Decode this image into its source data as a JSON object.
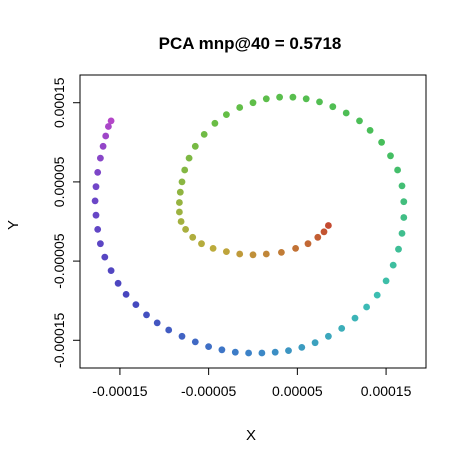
{
  "chart_data": {
    "type": "scatter",
    "title": "PCA mnp@40 = 0.5718",
    "xlabel": "X",
    "ylabel": "Y",
    "xlim": [
      -0.000195,
      0.000195
    ],
    "ylim": [
      -0.000185,
      0.000185
    ],
    "x_ticks": [
      -0.00015,
      -5e-05,
      5e-05,
      0.00015
    ],
    "x_tick_labels": [
      "-0.00015",
      "-0.00005",
      "0.00005",
      "0.00015"
    ],
    "y_ticks": [
      -0.00015,
      -5e-05,
      5e-05,
      0.00015
    ],
    "y_tick_labels": [
      "-0.00015",
      "-0.00005",
      "0.00005",
      "0.00015"
    ],
    "grid": false,
    "legend": "none",
    "color_scale": "rainbow gradient along the spiral from red (inner end) through yellow, green, cyan and blue to purple (outer end)",
    "series": [
      {
        "points": [
          [
            8.5e-05,
            -5e-06
          ],
          [
            8e-05,
            -1.3e-05
          ],
          [
            7.3e-05,
            -2e-05
          ],
          [
            6.2e-05,
            -2.8e-05
          ],
          [
            4.8e-05,
            -3.4e-05
          ],
          [
            3.2e-05,
            -3.9e-05
          ],
          [
            1.5e-05,
            -4.1e-05
          ],
          [
            0.0,
            -4.2e-05
          ],
          [
            -1.5e-05,
            -4.1e-05
          ],
          [
            -3e-05,
            -3.8e-05
          ],
          [
            -4.5e-05,
            -3.4e-05
          ],
          [
            -5.8e-05,
            -2.8e-05
          ],
          [
            -6.8e-05,
            -2e-05
          ],
          [
            -7.6e-05,
            -1e-05
          ],
          [
            -8.1e-05,
            0.0
          ],
          [
            -8.3e-05,
            1.2e-05
          ],
          [
            -8.3e-05,
            2.4e-05
          ],
          [
            -8.2e-05,
            3.7e-05
          ],
          [
            -8e-05,
            5e-05
          ],
          [
            -7.7e-05,
            6.5e-05
          ],
          [
            -7.2e-05,
            8e-05
          ],
          [
            -6.5e-05,
            9.5e-05
          ],
          [
            -5.5e-05,
            0.00011
          ],
          [
            -4.3e-05,
            0.000124
          ],
          [
            -3e-05,
            0.000135
          ],
          [
            -1.5e-05,
            0.000144
          ],
          [
            0.0,
            0.00015
          ],
          [
            1.5e-05,
            0.000155
          ],
          [
            3e-05,
            0.000157
          ],
          [
            4.5e-05,
            0.000157
          ],
          [
            6e-05,
            0.000155
          ],
          [
            7.5e-05,
            0.000151
          ],
          [
            9e-05,
            0.000145
          ],
          [
            0.000105,
            0.000137
          ],
          [
            0.00012,
            0.000127
          ],
          [
            0.000132,
            0.000115
          ],
          [
            0.000145,
            0.0001
          ],
          [
            0.000155,
            8.3e-05
          ],
          [
            0.000163,
            6.5e-05
          ],
          [
            0.000168,
            4.5e-05
          ],
          [
            0.00017,
            2.5e-05
          ],
          [
            0.00017,
            5e-06
          ],
          [
            0.000168,
            -1.5e-05
          ],
          [
            0.000164,
            -3.5e-05
          ],
          [
            0.000158,
            -5.5e-05
          ],
          [
            0.00015,
            -7.5e-05
          ],
          [
            0.00014,
            -9.3e-05
          ],
          [
            0.000128,
            -0.000108
          ],
          [
            0.000115,
            -0.000122
          ],
          [
            0.0001,
            -0.000135
          ],
          [
            8.5e-05,
            -0.000145
          ],
          [
            7e-05,
            -0.000153
          ],
          [
            5.5e-05,
            -0.000159
          ],
          [
            4e-05,
            -0.000163
          ],
          [
            2.5e-05,
            -0.000165
          ],
          [
            1e-05,
            -0.000166
          ],
          [
            -5e-06,
            -0.000166
          ],
          [
            -2e-05,
            -0.000165
          ],
          [
            -3.5e-05,
            -0.000162
          ],
          [
            -5e-05,
            -0.000158
          ],
          [
            -6.5e-05,
            -0.000152
          ],
          [
            -8e-05,
            -0.000145
          ],
          [
            -9.5e-05,
            -0.000137
          ],
          [
            -0.000108,
            -0.000128
          ],
          [
            -0.00012,
            -0.000118
          ],
          [
            -0.000132,
            -0.000105
          ],
          [
            -0.000143,
            -9.2e-05
          ],
          [
            -0.000152,
            -7.8e-05
          ],
          [
            -0.00016,
            -6.2e-05
          ],
          [
            -0.000167,
            -4.5e-05
          ],
          [
            -0.000172,
            -2.8e-05
          ],
          [
            -0.000175,
            -1e-05
          ],
          [
            -0.000177,
            8e-06
          ],
          [
            -0.000178,
            2.6e-05
          ],
          [
            -0.000177,
            4.4e-05
          ],
          [
            -0.000175,
            6.2e-05
          ],
          [
            -0.000172,
            8e-05
          ],
          [
            -0.000169,
            9.5e-05
          ],
          [
            -0.000166,
            0.000108
          ],
          [
            -0.000163,
            0.00012
          ],
          [
            -0.00016,
            0.000127
          ]
        ]
      }
    ]
  }
}
